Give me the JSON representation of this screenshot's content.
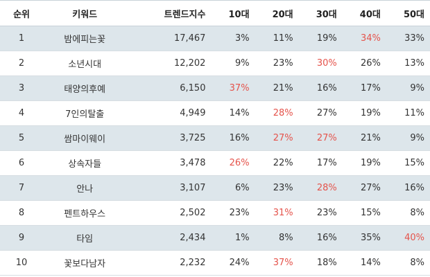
{
  "columns": {
    "rank": "순위",
    "keyword": "키워드",
    "score": "트렌드지수",
    "age10": "10대",
    "age20": "20대",
    "age30": "30대",
    "age40": "40대",
    "age50": "50대"
  },
  "highlight_color": "#e5534b",
  "stripe_color": "#dde6eb",
  "rows": [
    {
      "rank": "1",
      "keyword": "밤에피는꽃",
      "score": "17,467",
      "age10": "3%",
      "age20": "11%",
      "age30": "19%",
      "age40": "34%",
      "age50": "33%",
      "highlight": "age40"
    },
    {
      "rank": "2",
      "keyword": "소년시대",
      "score": "12,202",
      "age10": "9%",
      "age20": "23%",
      "age30": "30%",
      "age40": "26%",
      "age50": "13%",
      "highlight": "age30"
    },
    {
      "rank": "3",
      "keyword": "태양의후예",
      "score": "6,150",
      "age10": "37%",
      "age20": "21%",
      "age30": "16%",
      "age40": "17%",
      "age50": "9%",
      "highlight": "age10"
    },
    {
      "rank": "4",
      "keyword": "7인의탈출",
      "score": "4,949",
      "age10": "14%",
      "age20": "28%",
      "age30": "27%",
      "age40": "19%",
      "age50": "11%",
      "highlight": "age20"
    },
    {
      "rank": "5",
      "keyword": "쌈마이웨이",
      "score": "3,725",
      "age10": "16%",
      "age20": "27%",
      "age30": "27%",
      "age40": "21%",
      "age50": "9%",
      "highlight": "age20,age30"
    },
    {
      "rank": "6",
      "keyword": "상속자들",
      "score": "3,478",
      "age10": "26%",
      "age20": "22%",
      "age30": "17%",
      "age40": "19%",
      "age50": "15%",
      "highlight": "age10"
    },
    {
      "rank": "7",
      "keyword": "안나",
      "score": "3,107",
      "age10": "6%",
      "age20": "23%",
      "age30": "28%",
      "age40": "27%",
      "age50": "16%",
      "highlight": "age30"
    },
    {
      "rank": "8",
      "keyword": "펜트하우스",
      "score": "2,502",
      "age10": "23%",
      "age20": "31%",
      "age30": "23%",
      "age40": "15%",
      "age50": "8%",
      "highlight": "age20"
    },
    {
      "rank": "9",
      "keyword": "타임",
      "score": "2,434",
      "age10": "1%",
      "age20": "8%",
      "age30": "16%",
      "age40": "35%",
      "age50": "40%",
      "highlight": "age50"
    },
    {
      "rank": "10",
      "keyword": "꽃보다남자",
      "score": "2,232",
      "age10": "24%",
      "age20": "37%",
      "age30": "18%",
      "age40": "14%",
      "age50": "8%",
      "highlight": "age20"
    }
  ]
}
